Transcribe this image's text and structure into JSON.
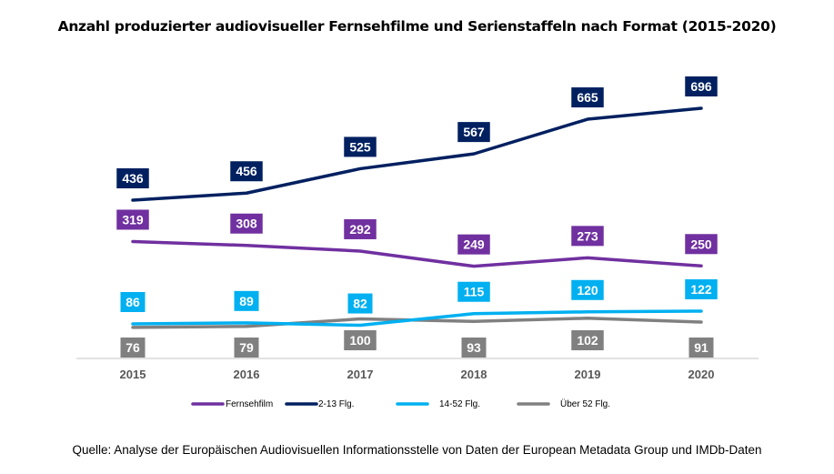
{
  "chart_data": {
    "type": "line",
    "title": "Anzahl produzierter audiovisueller Fernsehfilme und Serienstaffeln nach Format (2015-2020)",
    "xlabel": "",
    "ylabel": "",
    "x": [
      "2015",
      "2016",
      "2017",
      "2018",
      "2019",
      "2020"
    ],
    "ylim": [
      0,
      720
    ],
    "grid": false,
    "legend_position": "bottom",
    "series": [
      {
        "name": "Fernsehfilm",
        "color": "#7030A0",
        "values": [
          319,
          308,
          292,
          249,
          273,
          250
        ],
        "label_pos": "above"
      },
      {
        "name": "2-13 Flg.",
        "color": "#002060",
        "values": [
          436,
          456,
          525,
          567,
          665,
          696
        ],
        "label_pos": "above"
      },
      {
        "name": "14-52 Flg.",
        "color": "#00B0F0",
        "values": [
          86,
          89,
          82,
          115,
          120,
          122
        ],
        "label_pos": "above"
      },
      {
        "name": "Über 52 Flg.",
        "color": "#808080",
        "values": [
          76,
          79,
          100,
          93,
          102,
          91
        ],
        "label_pos": "below"
      }
    ],
    "source": "Quelle: Analyse der Europäischen Audiovisuellen Informationsstelle von Daten der European Metadata Group und IMDb-Daten"
  }
}
